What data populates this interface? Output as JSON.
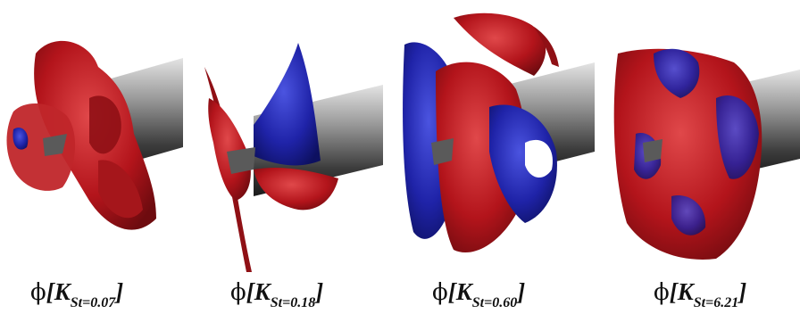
{
  "panels": [
    {
      "phi": "ϕ",
      "open": "[",
      "k": "K",
      "sub": "St=0.07",
      "close": "]"
    },
    {
      "phi": "ϕ",
      "open": "[",
      "k": "K",
      "sub": "St=0.18",
      "close": "]"
    },
    {
      "phi": "ϕ",
      "open": "[",
      "k": "K",
      "sub": "St=0.60",
      "close": "]"
    },
    {
      "phi": "ϕ",
      "open": "[",
      "k": "K",
      "sub": "St=6.21",
      "close": "]"
    }
  ],
  "colors": {
    "positive": "#b3141b",
    "negative": "#1f23a8",
    "cylinder_light": "#d6d6d6",
    "cylinder_dark": "#2a2a2a"
  }
}
